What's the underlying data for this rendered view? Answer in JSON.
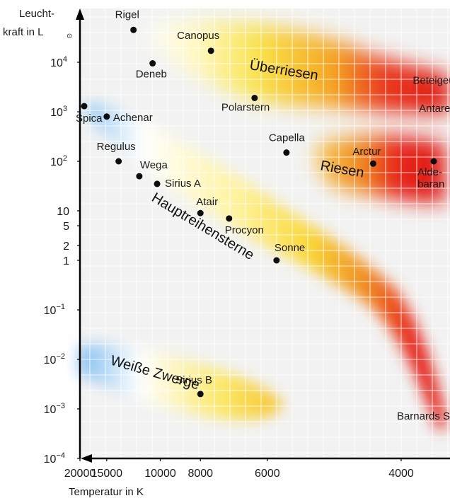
{
  "chart_data": {
    "type": "scatter",
    "title": "",
    "ylabel_lines": [
      "Leucht-",
      "kraft in L",
      "⊙"
    ],
    "xlabel": "Temperatur in K",
    "x_scale": "reciprocal",
    "y_scale": "log",
    "xlim": [
      20000,
      3200
    ],
    "ylim": [
      0.0001,
      100000
    ],
    "grid": true,
    "x_ticks": [
      {
        "label": "20000",
        "value": 20000
      },
      {
        "label": "15000",
        "value": 15000
      },
      {
        "label": "10000",
        "value": 10000
      },
      {
        "label": "8000",
        "value": 8000
      },
      {
        "label": "6000",
        "value": 6000
      },
      {
        "label": "4000",
        "value": 4000
      }
    ],
    "y_ticks": [
      {
        "base": "10",
        "exp": "4",
        "value": 10000
      },
      {
        "base": "10",
        "exp": "3",
        "value": 1000
      },
      {
        "base": "10",
        "exp": "2",
        "value": 100
      },
      {
        "base": "10",
        "exp": "",
        "value": 10
      },
      {
        "base": "5",
        "exp": "",
        "value": 5
      },
      {
        "base": "2",
        "exp": "",
        "value": 2
      },
      {
        "base": "1",
        "exp": "",
        "value": 1
      },
      {
        "base": "10",
        "exp": "−1",
        "value": 0.1
      },
      {
        "base": "10",
        "exp": "−2",
        "value": 0.01
      },
      {
        "base": "10",
        "exp": "−3",
        "value": 0.001
      },
      {
        "base": "10",
        "exp": "−4",
        "value": 0.0001
      }
    ],
    "regions": [
      {
        "label": "Überriesen",
        "kind": "supergiants"
      },
      {
        "label": "Riesen",
        "kind": "giants"
      },
      {
        "label": "Hauptreihensterne",
        "kind": "main-sequence"
      },
      {
        "label": "Weiße Zwerge",
        "kind": "white-dwarfs"
      }
    ],
    "stars": [
      {
        "name": "Rigel",
        "temp": 12000,
        "lum": 45000
      },
      {
        "name": "Canopus",
        "temp": 7600,
        "lum": 17000
      },
      {
        "name": "Deneb",
        "temp": 10500,
        "lum": 9500
      },
      {
        "name": "Beteigeuze",
        "temp": 3300,
        "lum": 2100
      },
      {
        "name": "Antares",
        "temp": 3400,
        "lum": 1300
      },
      {
        "name": "Polarstern",
        "temp": 6300,
        "lum": 1900
      },
      {
        "name": "Spica",
        "temp": 19000,
        "lum": 1300
      },
      {
        "name": "Achenar",
        "temp": 15000,
        "lum": 800
      },
      {
        "name": "Capella",
        "temp": 5600,
        "lum": 150
      },
      {
        "name": "Regulus",
        "temp": 13500,
        "lum": 100
      },
      {
        "name": "Arctur",
        "temp": 4300,
        "lum": 90
      },
      {
        "name": "Aldebaran",
        "label_lines": [
          "Alde-",
          "baran"
        ],
        "temp": 3700,
        "lum": 100
      },
      {
        "name": "Wega",
        "temp": 11500,
        "lum": 50
      },
      {
        "name": "Sirius A",
        "temp": 10200,
        "lum": 35
      },
      {
        "name": "Atair",
        "temp": 8000,
        "lum": 9
      },
      {
        "name": "Procyon",
        "temp": 7000,
        "lum": 7
      },
      {
        "name": "Sonne",
        "temp": 5800,
        "lum": 1
      },
      {
        "name": "Sirius B",
        "temp": 8000,
        "lum": 0.002
      },
      {
        "name": "Barnards Stern",
        "temp": 3250,
        "lum": 0.0008
      }
    ],
    "colors": {
      "blue": "#8ec6f0",
      "white": "#ffffff",
      "yellow": "#f9e24a",
      "orange": "#f5a623",
      "red": "#e8261c",
      "grid": "#c8c8c8",
      "axis": "#000000",
      "text": "#1a1a1a"
    }
  }
}
